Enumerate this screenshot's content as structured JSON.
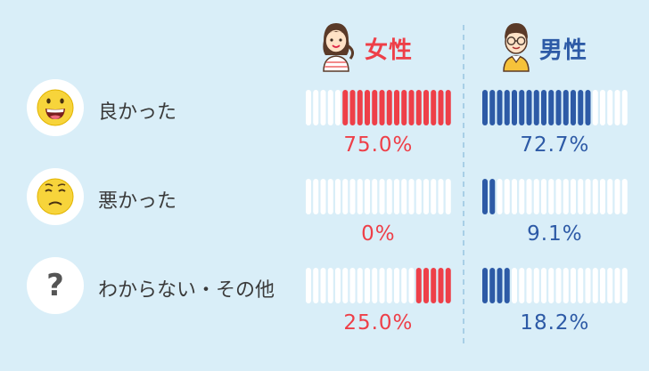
{
  "chart_data": {
    "type": "bar",
    "categories": [
      "良かった",
      "悪かった",
      "わからない・その他"
    ],
    "series": [
      {
        "name": "女性",
        "values": [
          75.0,
          0,
          25.0
        ],
        "labels": [
          "75.0%",
          "0%",
          "25.0%"
        ],
        "color": "#ee3f48"
      },
      {
        "name": "男性",
        "values": [
          72.7,
          9.1,
          18.2
        ],
        "labels": [
          "72.7%",
          "9.1%",
          "18.2%"
        ],
        "color": "#2d5aa6"
      }
    ],
    "ylim": [
      0,
      100
    ],
    "icons": [
      "grinning-face-icon",
      "worried-face-icon",
      "question-mark-icon"
    ],
    "question_glyph": "?"
  },
  "colors": {
    "background": "#d9eef8",
    "empty_tick": "#ffffff",
    "divider": "#a8cfe6"
  }
}
